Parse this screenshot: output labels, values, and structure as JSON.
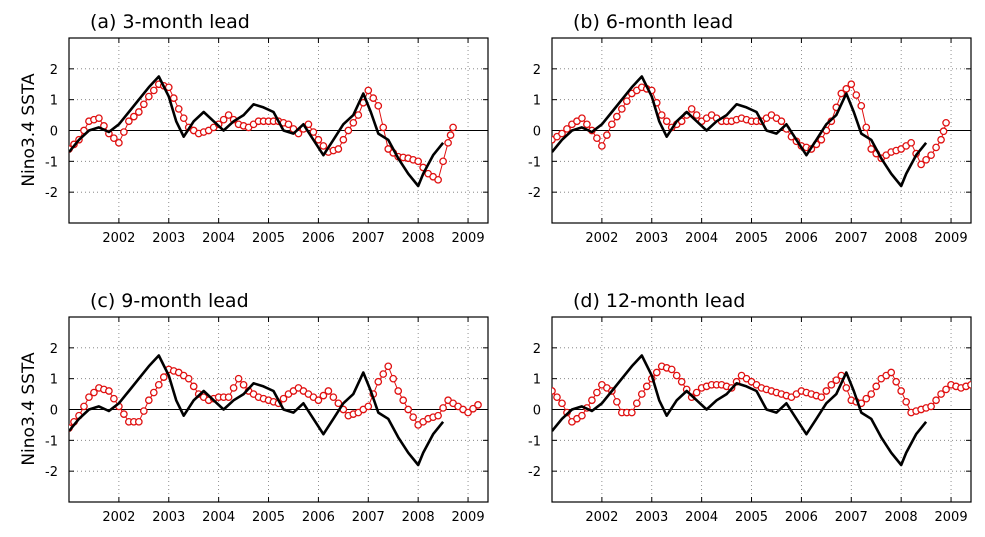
{
  "y_axis_label": "Nino3.4 SSTA",
  "colors": {
    "observed": "#000000",
    "forecast": "#e01010"
  },
  "chart_data": [
    {
      "type": "line",
      "title": "(a) 3-month lead",
      "xlim": [
        2001.0,
        2009.4
      ],
      "ylim": [
        -3,
        3
      ],
      "xticks": [
        2002,
        2003,
        2004,
        2005,
        2006,
        2007,
        2008,
        2009
      ],
      "xtick_labels": [
        "2002",
        "2003",
        "2004",
        "2005",
        "2006",
        "2007",
        "2008",
        "2009"
      ],
      "yticks": [
        -2,
        -1,
        0,
        1,
        2
      ],
      "ytick_labels": [
        "-2",
        "-1",
        "0",
        "1",
        "2"
      ],
      "grid": true,
      "series": [
        {
          "style": "solid-line",
          "x": [
            2001.0,
            2001.2,
            2001.4,
            2001.6,
            2001.8,
            2002.0,
            2002.2,
            2002.4,
            2002.6,
            2002.8,
            2003.0,
            2003.15,
            2003.3,
            2003.5,
            2003.7,
            2003.9,
            2004.1,
            2004.3,
            2004.5,
            2004.7,
            2004.9,
            2005.1,
            2005.3,
            2005.5,
            2005.7,
            2005.9,
            2006.1,
            2006.3,
            2006.5,
            2006.7,
            2006.9,
            2007.05,
            2007.2,
            2007.4,
            2007.6,
            2007.8,
            2008.0,
            2008.1,
            2008.3,
            2008.5
          ],
          "y": [
            -0.7,
            -0.3,
            0.0,
            0.1,
            -0.05,
            0.2,
            0.6,
            1.0,
            1.4,
            1.75,
            1.1,
            0.3,
            -0.2,
            0.3,
            0.6,
            0.3,
            0.0,
            0.3,
            0.5,
            0.85,
            0.75,
            0.6,
            0.0,
            -0.1,
            0.2,
            -0.3,
            -0.8,
            -0.3,
            0.2,
            0.5,
            1.2,
            0.6,
            -0.1,
            -0.3,
            -0.9,
            -1.4,
            -1.8,
            -1.4,
            -0.8,
            -0.4
          ]
        },
        {
          "style": "circle-markers",
          "x": [
            2001.0,
            2001.2,
            2001.4,
            2001.6,
            2001.8,
            2002.0,
            2002.2,
            2002.4,
            2002.6,
            2002.8,
            2003.0,
            2003.2,
            2003.4,
            2003.6,
            2003.8,
            2004.0,
            2004.2,
            2004.4,
            2004.6,
            2004.8,
            2005.0,
            2005.2,
            2005.4,
            2005.6,
            2005.8,
            2006.0,
            2006.2,
            2006.4,
            2006.6,
            2006.8,
            2007.0,
            2007.2,
            2007.4,
            2007.6,
            2007.8,
            2008.0,
            2008.2,
            2008.4,
            2008.6,
            2008.7
          ],
          "y": [
            -0.6,
            -0.3,
            0.3,
            0.4,
            -0.1,
            -0.4,
            0.3,
            0.6,
            1.1,
            1.5,
            1.4,
            0.7,
            0.1,
            -0.1,
            0.0,
            0.2,
            0.5,
            0.2,
            0.1,
            0.3,
            0.3,
            0.3,
            0.2,
            -0.1,
            0.2,
            -0.3,
            -0.7,
            -0.6,
            0.0,
            0.5,
            1.3,
            0.8,
            -0.6,
            -0.85,
            -0.9,
            -1.0,
            -1.4,
            -1.6,
            -0.4,
            0.1
          ]
        }
      ]
    },
    {
      "type": "line",
      "title": "(b) 6-month lead",
      "xlim": [
        2001.0,
        2009.4
      ],
      "ylim": [
        -3,
        3
      ],
      "xticks": [
        2002,
        2003,
        2004,
        2005,
        2006,
        2007,
        2008,
        2009
      ],
      "xtick_labels": [
        "2002",
        "2003",
        "2004",
        "2005",
        "2006",
        "2007",
        "2008",
        "2009"
      ],
      "yticks": [
        -2,
        -1,
        0,
        1,
        2
      ],
      "ytick_labels": [
        "-2",
        "-1",
        "0",
        "1",
        "2"
      ],
      "grid": true,
      "series": [
        {
          "style": "solid-line",
          "x": [
            2001.0,
            2001.2,
            2001.4,
            2001.6,
            2001.8,
            2002.0,
            2002.2,
            2002.4,
            2002.6,
            2002.8,
            2003.0,
            2003.15,
            2003.3,
            2003.5,
            2003.7,
            2003.9,
            2004.1,
            2004.3,
            2004.5,
            2004.7,
            2004.9,
            2005.1,
            2005.3,
            2005.5,
            2005.7,
            2005.9,
            2006.1,
            2006.3,
            2006.5,
            2006.7,
            2006.9,
            2007.05,
            2007.2,
            2007.4,
            2007.6,
            2007.8,
            2008.0,
            2008.1,
            2008.3,
            2008.5
          ],
          "y": [
            -0.7,
            -0.3,
            0.0,
            0.1,
            -0.05,
            0.2,
            0.6,
            1.0,
            1.4,
            1.75,
            1.1,
            0.3,
            -0.2,
            0.3,
            0.6,
            0.3,
            0.0,
            0.3,
            0.5,
            0.85,
            0.75,
            0.6,
            0.0,
            -0.1,
            0.2,
            -0.3,
            -0.8,
            -0.3,
            0.2,
            0.5,
            1.2,
            0.6,
            -0.1,
            -0.3,
            -0.9,
            -1.4,
            -1.8,
            -1.4,
            -0.8,
            -0.4
          ]
        },
        {
          "style": "circle-markers",
          "x": [
            2001.0,
            2001.2,
            2001.4,
            2001.6,
            2001.8,
            2002.0,
            2002.2,
            2002.4,
            2002.6,
            2002.8,
            2003.0,
            2003.2,
            2003.4,
            2003.6,
            2003.8,
            2004.0,
            2004.2,
            2004.4,
            2004.6,
            2004.8,
            2005.0,
            2005.2,
            2005.4,
            2005.6,
            2005.8,
            2006.0,
            2006.2,
            2006.4,
            2006.6,
            2006.8,
            2007.0,
            2007.2,
            2007.4,
            2007.6,
            2007.8,
            2008.0,
            2008.2,
            2008.4,
            2008.6,
            2008.8,
            2008.9
          ],
          "y": [
            -0.3,
            -0.1,
            0.2,
            0.4,
            0.0,
            -0.5,
            0.2,
            0.7,
            1.2,
            1.4,
            1.3,
            0.5,
            0.1,
            0.3,
            0.7,
            0.3,
            0.5,
            0.3,
            0.3,
            0.4,
            0.3,
            0.3,
            0.5,
            0.3,
            -0.2,
            -0.5,
            -0.6,
            -0.3,
            0.3,
            1.2,
            1.5,
            0.8,
            -0.6,
            -0.9,
            -0.7,
            -0.6,
            -0.4,
            -1.1,
            -0.8,
            -0.3,
            0.25
          ]
        }
      ]
    },
    {
      "type": "line",
      "title": "(c) 9-month lead",
      "xlim": [
        2001.0,
        2009.4
      ],
      "ylim": [
        -3,
        3
      ],
      "xticks": [
        2002,
        2003,
        2004,
        2005,
        2006,
        2007,
        2008,
        2009
      ],
      "xtick_labels": [
        "2002",
        "2003",
        "2004",
        "2005",
        "2006",
        "2007",
        "2008",
        "2009"
      ],
      "yticks": [
        -2,
        -1,
        0,
        1,
        2
      ],
      "ytick_labels": [
        "-2",
        "-1",
        "0",
        "1",
        "2"
      ],
      "grid": true,
      "series": [
        {
          "style": "solid-line",
          "x": [
            2001.0,
            2001.2,
            2001.4,
            2001.6,
            2001.8,
            2002.0,
            2002.2,
            2002.4,
            2002.6,
            2002.8,
            2003.0,
            2003.15,
            2003.3,
            2003.5,
            2003.7,
            2003.9,
            2004.1,
            2004.3,
            2004.5,
            2004.7,
            2004.9,
            2005.1,
            2005.3,
            2005.5,
            2005.7,
            2005.9,
            2006.1,
            2006.3,
            2006.5,
            2006.7,
            2006.9,
            2007.05,
            2007.2,
            2007.4,
            2007.6,
            2007.8,
            2008.0,
            2008.1,
            2008.3,
            2008.5
          ],
          "y": [
            -0.7,
            -0.3,
            0.0,
            0.1,
            -0.05,
            0.2,
            0.6,
            1.0,
            1.4,
            1.75,
            1.1,
            0.3,
            -0.2,
            0.3,
            0.6,
            0.3,
            0.0,
            0.3,
            0.5,
            0.85,
            0.75,
            0.6,
            0.0,
            -0.1,
            0.2,
            -0.3,
            -0.8,
            -0.3,
            0.2,
            0.5,
            1.2,
            0.6,
            -0.1,
            -0.3,
            -0.9,
            -1.4,
            -1.8,
            -1.4,
            -0.8,
            -0.4
          ]
        },
        {
          "style": "circle-markers",
          "x": [
            2001.0,
            2001.2,
            2001.4,
            2001.6,
            2001.8,
            2002.0,
            2002.2,
            2002.4,
            2002.6,
            2002.8,
            2003.0,
            2003.2,
            2003.4,
            2003.6,
            2003.8,
            2004.0,
            2004.2,
            2004.4,
            2004.6,
            2004.8,
            2005.0,
            2005.2,
            2005.4,
            2005.6,
            2005.8,
            2006.0,
            2006.2,
            2006.4,
            2006.6,
            2006.8,
            2007.0,
            2007.2,
            2007.4,
            2007.6,
            2007.8,
            2008.0,
            2008.2,
            2008.4,
            2008.6,
            2008.8,
            2009.0,
            2009.2
          ],
          "y": [
            -0.6,
            -0.2,
            0.4,
            0.7,
            0.6,
            0.1,
            -0.4,
            -0.4,
            0.3,
            0.8,
            1.3,
            1.2,
            1.0,
            0.5,
            0.3,
            0.4,
            0.4,
            1.0,
            0.6,
            0.4,
            0.3,
            0.2,
            0.5,
            0.7,
            0.5,
            0.3,
            0.6,
            0.2,
            -0.2,
            -0.1,
            0.1,
            0.9,
            1.4,
            0.6,
            0.0,
            -0.5,
            -0.3,
            -0.2,
            0.3,
            0.1,
            -0.1,
            0.15
          ]
        }
      ]
    },
    {
      "type": "line",
      "title": "(d) 12-month lead",
      "xlim": [
        2001.0,
        2009.4
      ],
      "ylim": [
        -3,
        3
      ],
      "xticks": [
        2002,
        2003,
        2004,
        2005,
        2006,
        2007,
        2008,
        2009
      ],
      "xtick_labels": [
        "2002",
        "2003",
        "2004",
        "2005",
        "2006",
        "2007",
        "2008",
        "2009"
      ],
      "yticks": [
        -2,
        -1,
        0,
        1,
        2
      ],
      "ytick_labels": [
        "-2",
        "-1",
        "0",
        "1",
        "2"
      ],
      "grid": true,
      "series": [
        {
          "style": "solid-line",
          "x": [
            2001.0,
            2001.2,
            2001.4,
            2001.6,
            2001.8,
            2002.0,
            2002.2,
            2002.4,
            2002.6,
            2002.8,
            2003.0,
            2003.15,
            2003.3,
            2003.5,
            2003.7,
            2003.9,
            2004.1,
            2004.3,
            2004.5,
            2004.7,
            2004.9,
            2005.1,
            2005.3,
            2005.5,
            2005.7,
            2005.9,
            2006.1,
            2006.3,
            2006.5,
            2006.7,
            2006.9,
            2007.05,
            2007.2,
            2007.4,
            2007.6,
            2007.8,
            2008.0,
            2008.1,
            2008.3,
            2008.5
          ],
          "y": [
            -0.7,
            -0.3,
            0.0,
            0.1,
            -0.05,
            0.2,
            0.6,
            1.0,
            1.4,
            1.75,
            1.1,
            0.3,
            -0.2,
            0.3,
            0.6,
            0.3,
            0.0,
            0.3,
            0.5,
            0.85,
            0.75,
            0.6,
            0.0,
            -0.1,
            0.2,
            -0.3,
            -0.8,
            -0.3,
            0.2,
            0.5,
            1.2,
            0.6,
            -0.1,
            -0.3,
            -0.9,
            -1.4,
            -1.8,
            -1.4,
            -0.8,
            -0.4
          ]
        },
        {
          "style": "circle-markers",
          "x": [
            2001.0,
            2001.2,
            2001.4,
            2001.6,
            2001.8,
            2002.0,
            2002.2,
            2002.4,
            2002.6,
            2002.8,
            2003.0,
            2003.2,
            2003.4,
            2003.6,
            2003.8,
            2004.0,
            2004.2,
            2004.4,
            2004.6,
            2004.8,
            2005.0,
            2005.2,
            2005.4,
            2005.6,
            2005.8,
            2006.0,
            2006.2,
            2006.4,
            2006.6,
            2006.8,
            2007.0,
            2007.2,
            2007.4,
            2007.6,
            2007.8,
            2008.0,
            2008.2,
            2008.4,
            2008.6,
            2008.8,
            2009.0,
            2009.2,
            2009.4
          ],
          "y": [
            0.6,
            0.2,
            -0.4,
            -0.2,
            0.3,
            0.8,
            0.6,
            -0.1,
            -0.1,
            0.5,
            1.0,
            1.4,
            1.3,
            0.9,
            0.4,
            0.7,
            0.8,
            0.8,
            0.7,
            1.1,
            0.9,
            0.7,
            0.6,
            0.5,
            0.4,
            0.6,
            0.5,
            0.4,
            0.8,
            1.1,
            0.3,
            0.2,
            0.5,
            1.0,
            1.2,
            0.6,
            -0.1,
            0.0,
            0.1,
            0.5,
            0.8,
            0.7,
            0.8
          ]
        }
      ]
    }
  ]
}
